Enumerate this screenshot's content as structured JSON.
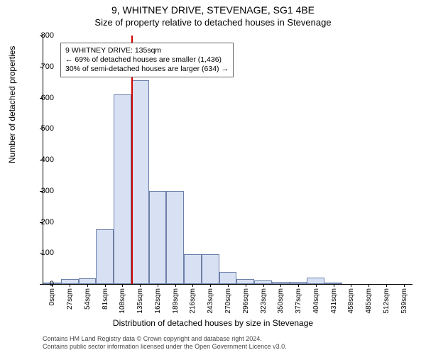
{
  "title_line1": "9, WHITNEY DRIVE, STEVENAGE, SG1 4BE",
  "title_line2": "Size of property relative to detached houses in Stevenage",
  "y_axis_label": "Number of detached properties",
  "x_axis_label": "Distribution of detached houses by size in Stevenage",
  "chart": {
    "type": "histogram",
    "bar_fill": "#d8e1f3",
    "bar_border": "#6b7fa8",
    "background_color": "#ffffff",
    "ylim": [
      0,
      800
    ],
    "ytick_step": 100,
    "x_categories": [
      "0sqm",
      "27sqm",
      "54sqm",
      "81sqm",
      "108sqm",
      "135sqm",
      "162sqm",
      "189sqm",
      "216sqm",
      "243sqm",
      "270sqm",
      "296sqm",
      "323sqm",
      "350sqm",
      "377sqm",
      "404sqm",
      "431sqm",
      "458sqm",
      "485sqm",
      "512sqm",
      "539sqm"
    ],
    "values": [
      3,
      15,
      18,
      175,
      610,
      655,
      300,
      300,
      95,
      95,
      40,
      15,
      12,
      8,
      8,
      20,
      3,
      0,
      0,
      0,
      0
    ],
    "marker_x_index": 5,
    "marker_color": "#d00000",
    "annotation_lines": [
      "9 WHITNEY DRIVE: 135sqm",
      "← 69% of detached houses are smaller (1,436)",
      "30% of semi-detached houses are larger (634) →"
    ],
    "label_fontsize": 12,
    "tick_fontsize": 10
  },
  "footer_line1": "Contains HM Land Registry data © Crown copyright and database right 2024.",
  "footer_line2": "Contains public sector information licensed under the Open Government Licence v3.0."
}
